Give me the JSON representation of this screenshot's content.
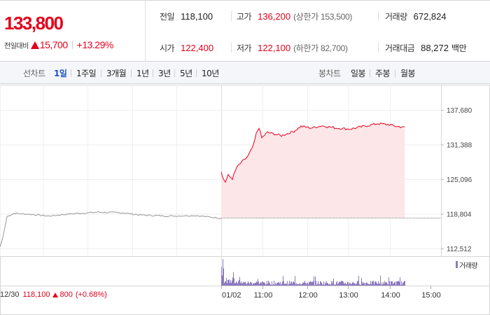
{
  "summary": {
    "price": "133,800",
    "change_label": "전일대비",
    "change_value": "15,700",
    "change_rate": "+13.29%",
    "prev_close": {
      "label": "전일",
      "value": "118,100"
    },
    "high": {
      "label": "고가",
      "value": "136,200",
      "sub": "(상한가 153,500)"
    },
    "volume": {
      "label": "거래량",
      "value": "672,824"
    },
    "open": {
      "label": "시가",
      "value": "122,400"
    },
    "low": {
      "label": "저가",
      "value": "122,100",
      "sub": "(하한가 82,700)"
    },
    "trade_value": {
      "label": "거래대금",
      "value": "88,272",
      "unit": "백만"
    }
  },
  "toolbar": {
    "line_label": "선차트",
    "periods": [
      "1일",
      "1주일",
      "3개월",
      "1년",
      "3년",
      "5년",
      "10년"
    ],
    "active_period": "1일",
    "candle_label": "봉차트",
    "candles": [
      "일봉",
      "주봉",
      "월봉"
    ]
  },
  "chart_data": {
    "type": "line",
    "y_ticks": [
      "137,680",
      "131,388",
      "125,096",
      "118,804",
      "112,512"
    ],
    "ylim": [
      112512,
      137680
    ],
    "baseline": 118100,
    "x_ticks": [
      "01/02",
      "11:00",
      "12:00",
      "13:00",
      "14:00",
      "15:00"
    ],
    "previous_day": {
      "date": "12/30",
      "close": "118,100",
      "change": "800",
      "rate": "(+0.68%)"
    },
    "volume_legend": "거래량",
    "colors": {
      "line": "#e4001b",
      "fill": "#fde6e8",
      "prev_line": "#999999",
      "volume": "#8c7bc0"
    }
  }
}
